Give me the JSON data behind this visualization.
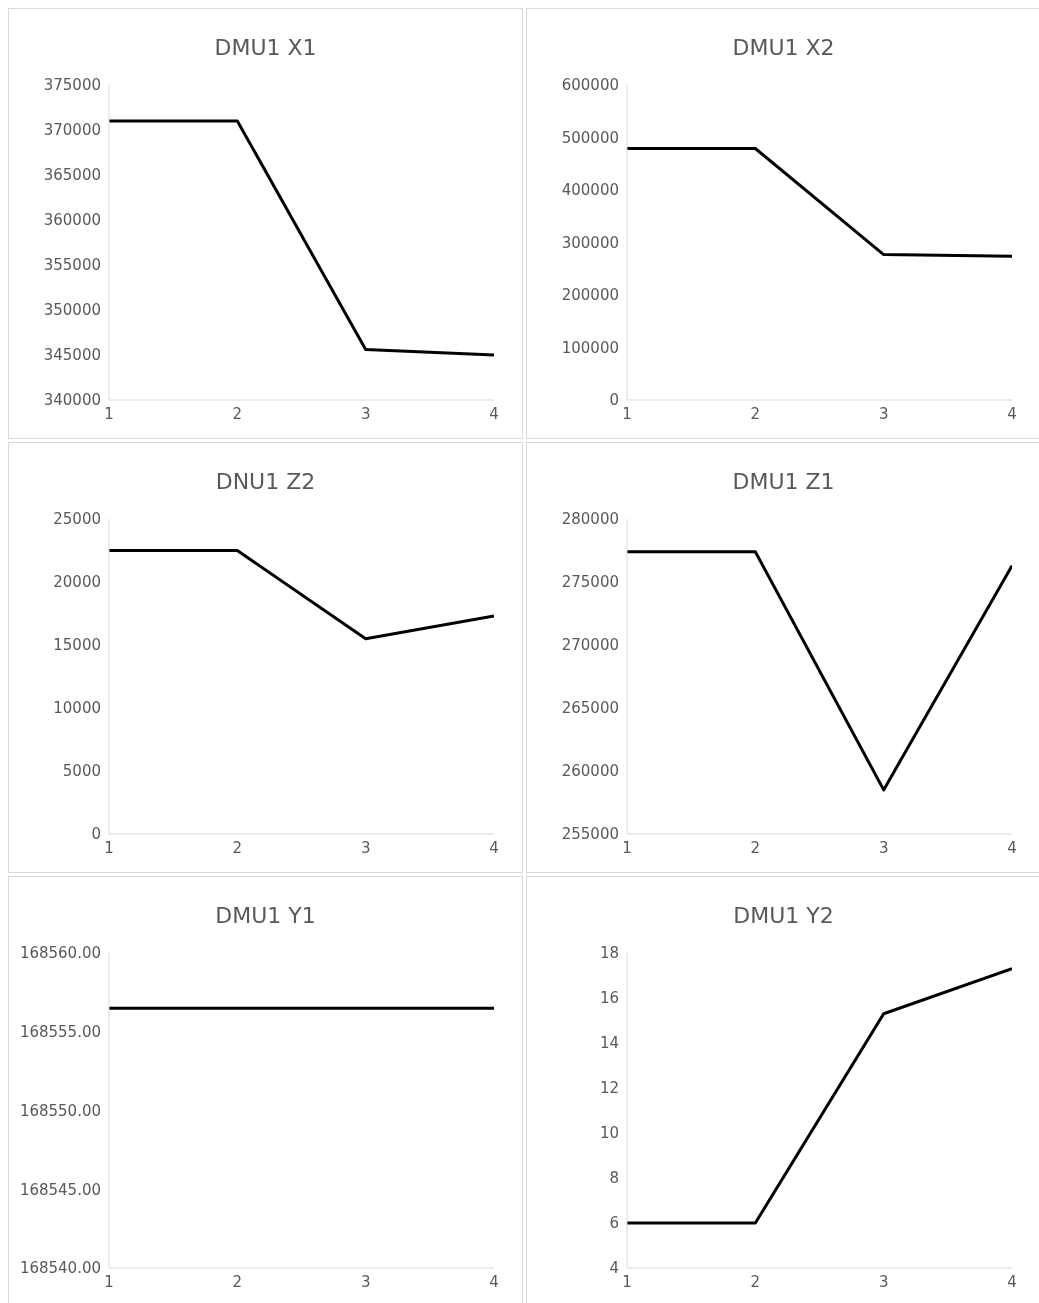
{
  "chart_data": [
    {
      "type": "line",
      "title": "DMU1 X1",
      "x": [
        1,
        2,
        3,
        4
      ],
      "values": [
        371000,
        371000,
        345600,
        345000
      ],
      "color": "#000000",
      "marker": "none",
      "xlim": [
        1,
        4
      ],
      "xticks": [
        1,
        2,
        3,
        4
      ],
      "ylim": [
        340000,
        375000
      ],
      "yticks": [
        340000,
        345000,
        350000,
        355000,
        360000,
        365000,
        370000,
        375000
      ]
    },
    {
      "type": "line",
      "title": "DMU1 X2",
      "x": [
        1,
        2,
        3,
        4
      ],
      "values": [
        479000,
        479000,
        277000,
        274000
      ],
      "color": "#000000",
      "marker": "none",
      "xlim": [
        1,
        4
      ],
      "xticks": [
        1,
        2,
        3,
        4
      ],
      "ylim": [
        0,
        600000
      ],
      "yticks": [
        0,
        100000,
        200000,
        300000,
        400000,
        500000,
        600000
      ]
    },
    {
      "type": "line",
      "title": "DNU1 Z2",
      "x": [
        1,
        2,
        3,
        4
      ],
      "values": [
        22500,
        22500,
        15500,
        17300
      ],
      "color": "#000000",
      "marker": "none",
      "xlim": [
        1,
        4
      ],
      "xticks": [
        1,
        2,
        3,
        4
      ],
      "ylim": [
        0,
        25000
      ],
      "yticks": [
        0,
        5000,
        10000,
        15000,
        20000,
        25000
      ]
    },
    {
      "type": "line",
      "title": "DMU1 Z1",
      "x": [
        1,
        2,
        3,
        4
      ],
      "values": [
        277400,
        277400,
        258500,
        276300
      ],
      "color": "#000000",
      "marker": "none",
      "xlim": [
        1,
        4
      ],
      "xticks": [
        1,
        2,
        3,
        4
      ],
      "ylim": [
        255000,
        280000
      ],
      "yticks": [
        255000,
        260000,
        265000,
        270000,
        275000,
        280000
      ]
    },
    {
      "type": "line",
      "title": "DMU1 Y1",
      "x": [
        1,
        2,
        3,
        4
      ],
      "values": [
        168556.5,
        168556.5,
        168556.5,
        168556.5
      ],
      "color": "#000000",
      "marker": "none",
      "xlim": [
        1,
        4
      ],
      "xticks": [
        1,
        2,
        3,
        4
      ],
      "ylim": [
        168540,
        168560
      ],
      "yticks": [
        {
          "value": 168540,
          "label": "168540.00"
        },
        {
          "value": 168545,
          "label": "168545.00"
        },
        {
          "value": 168550,
          "label": "168550.00"
        },
        {
          "value": 168555,
          "label": "168555.00"
        },
        {
          "value": 168560,
          "label": "168560.00"
        }
      ]
    },
    {
      "type": "line",
      "title": "DMU1 Y2",
      "x": [
        1,
        2,
        3,
        4
      ],
      "values": [
        6,
        6,
        15.3,
        17.3
      ],
      "color": "#000000",
      "marker": "none",
      "xlim": [
        1,
        4
      ],
      "xticks": [
        1,
        2,
        3,
        4
      ],
      "ylim": [
        4,
        18
      ],
      "yticks": [
        4,
        6,
        8,
        10,
        12,
        14,
        16,
        18
      ]
    }
  ]
}
